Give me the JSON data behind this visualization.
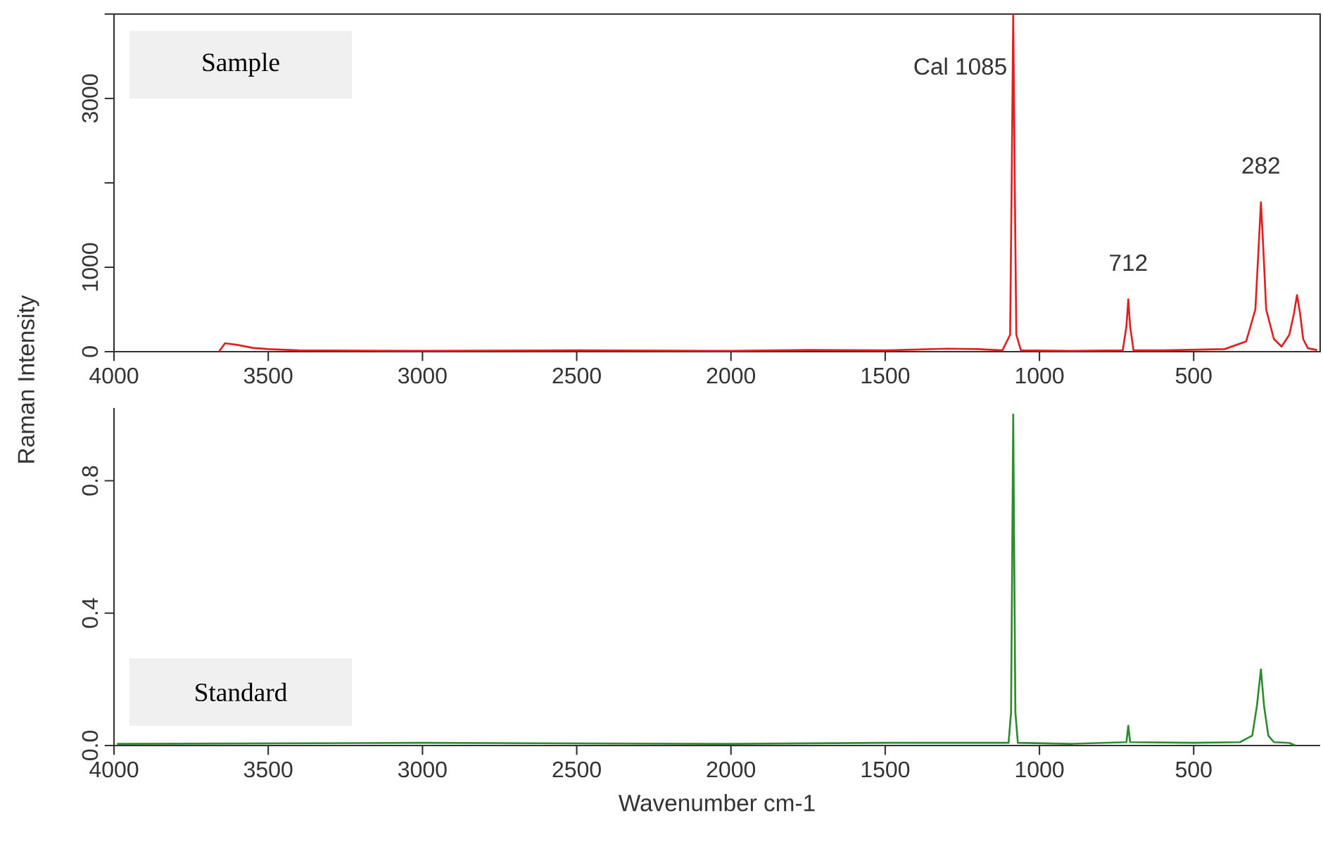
{
  "chart_data": [
    {
      "type": "line",
      "ylabel": "Raman Intensity",
      "xlim": [
        4000,
        90
      ],
      "ylim": [
        0,
        4000
      ],
      "xticks": [
        4000,
        3500,
        3000,
        2500,
        2000,
        1500,
        1000,
        500
      ],
      "yticks": [
        0,
        1000,
        {
          "value": 2000,
          "label": null
        },
        3000,
        {
          "value": 4000,
          "label": null
        }
      ],
      "series": [
        {
          "color": "#e02020",
          "x": [
            3660,
            3640,
            3600,
            3550,
            3500,
            3400,
            3000,
            2500,
            2000,
            1750,
            1500,
            1300,
            1200,
            1120,
            1095,
            1090,
            1085,
            1080,
            1075,
            1060,
            900,
            730,
            718,
            712,
            706,
            695,
            600,
            400,
            330,
            300,
            290,
            282,
            274,
            265,
            240,
            215,
            190,
            175,
            165,
            155,
            145,
            130,
            100
          ],
          "values": [
            0,
            100,
            80,
            45,
            30,
            15,
            10,
            15,
            10,
            20,
            15,
            35,
            30,
            15,
            200,
            2000,
            4000,
            2000,
            200,
            15,
            10,
            15,
            300,
            620,
            300,
            15,
            15,
            30,
            120,
            500,
            1200,
            1770,
            1200,
            500,
            150,
            60,
            200,
            450,
            670,
            450,
            150,
            40,
            20
          ]
        }
      ],
      "annotations": [
        "Sample",
        {
          "text": "Cal 1085",
          "x": 1085,
          "y": 4000
        },
        {
          "text": "712",
          "x": 712,
          "y": 620
        },
        {
          "text": "282",
          "x": 282,
          "y": 1770
        }
      ]
    },
    {
      "type": "line",
      "xlabel": "Wavenumber cm-1",
      "xlim": [
        4000,
        90
      ],
      "ylim": [
        0,
        1.02
      ],
      "xticks": [
        4000,
        3500,
        3000,
        2500,
        2000,
        1500,
        1000,
        500
      ],
      "yticks": [
        {
          "value": 0,
          "label": "0.0"
        },
        0.4,
        0.8
      ],
      "series": [
        {
          "color": "#2e8b2e",
          "x": [
            3990,
            3000,
            2000,
            1500,
            1100,
            1092,
            1088,
            1085,
            1082,
            1078,
            1070,
            900,
            718,
            712,
            706,
            500,
            350,
            310,
            295,
            282,
            272,
            258,
            240,
            190,
            170
          ],
          "values": [
            0.005,
            0.008,
            0.005,
            0.008,
            0.008,
            0.1,
            0.6,
            1.0,
            0.6,
            0.1,
            0.008,
            0.005,
            0.01,
            0.06,
            0.01,
            0.008,
            0.01,
            0.03,
            0.12,
            0.23,
            0.12,
            0.03,
            0.01,
            0.008,
            0.0
          ]
        }
      ],
      "annotations": [
        "Standard"
      ]
    }
  ]
}
